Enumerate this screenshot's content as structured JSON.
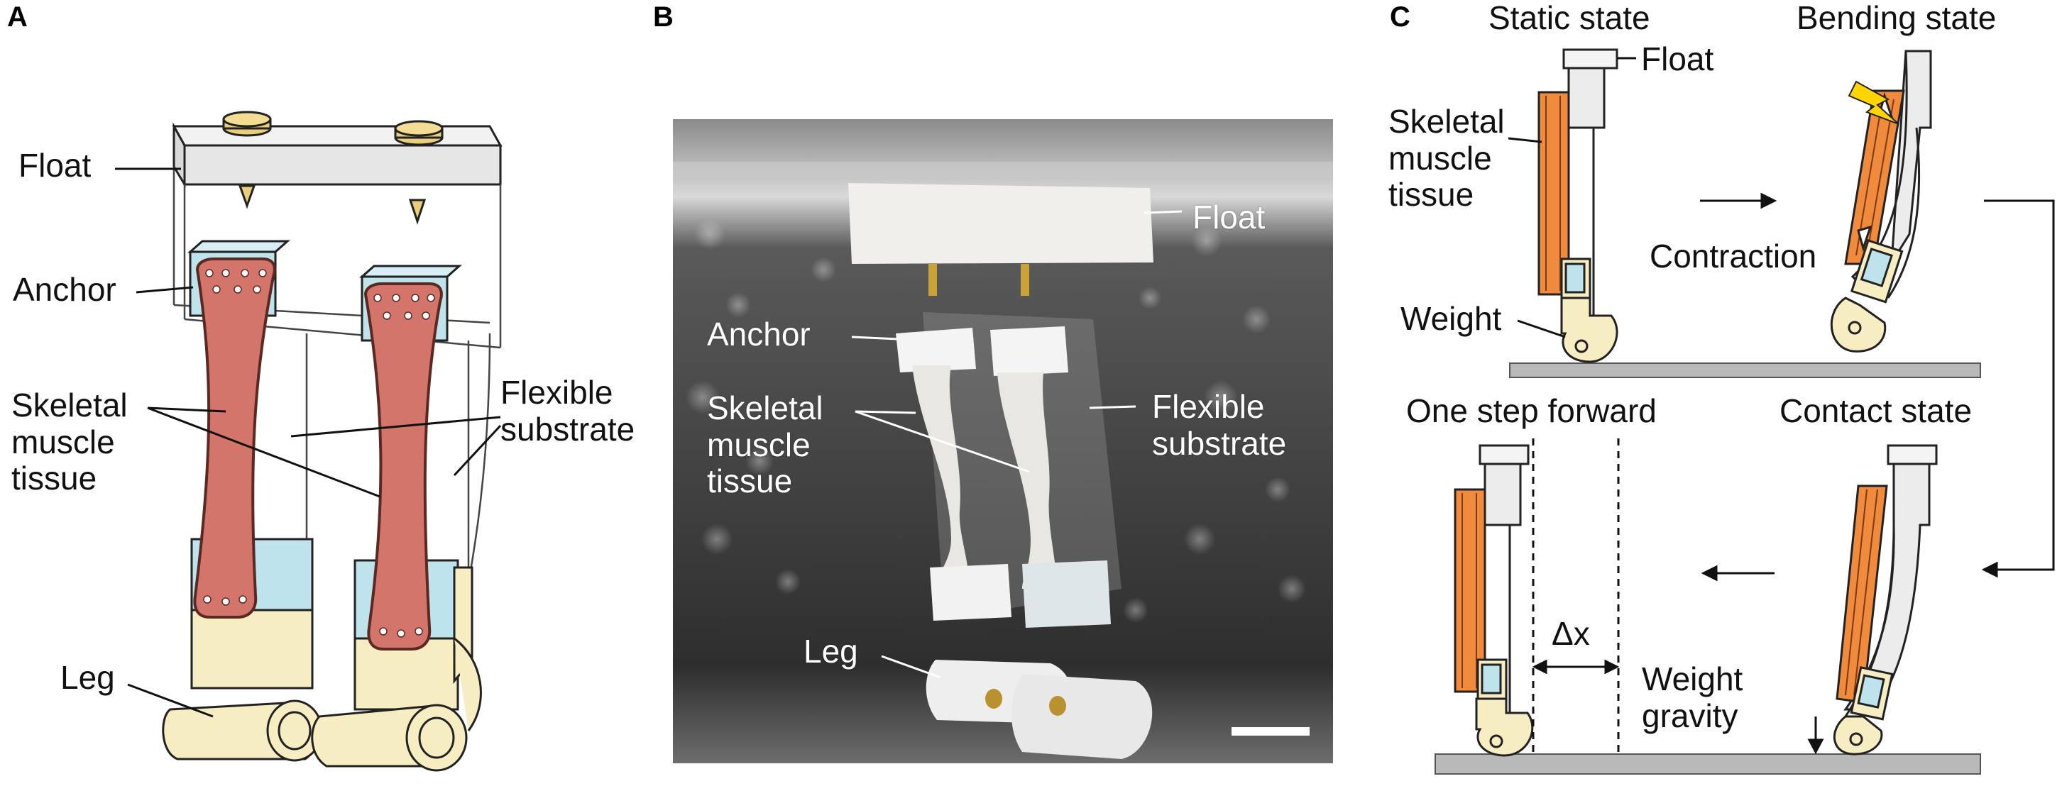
{
  "panels": {
    "a": {
      "letter": "A",
      "labels": {
        "float": "Float",
        "anchor": "Anchor",
        "skeletal_muscle_tissue": [
          "Skeletal",
          "muscle",
          "tissue"
        ],
        "flexible_substrate": [
          "Flexible",
          "substrate"
        ],
        "leg": "Leg"
      }
    },
    "b": {
      "letter": "B",
      "labels": {
        "float": "Float",
        "anchor": "Anchor",
        "skeletal_muscle_tissue": [
          "Skeletal",
          "muscle",
          "tissue"
        ],
        "flexible_substrate": [
          "Flexible",
          "substrate"
        ],
        "leg": "Leg"
      }
    },
    "c": {
      "letter": "C",
      "states": {
        "static": "Static state",
        "bending": "Bending state",
        "one_step_forward": "One step forward",
        "contact": "Contact state"
      },
      "labels": {
        "float": "Float",
        "skeletal_muscle_tissue": [
          "Skeletal",
          "muscle",
          "tissue"
        ],
        "contraction": "Contraction",
        "weight": "Weight",
        "delta_x": "Δx",
        "weight_gravity": [
          "Weight",
          "gravity"
        ]
      }
    }
  },
  "colors": {
    "muscle_red": "#d4756b",
    "muscle_outline": "#5a2a22",
    "anchor_blue": "#bfe3ec",
    "leg_yellow": "#f7edc2",
    "float_gray": "#e8e8e8",
    "orange_tissue": "#f08a3c",
    "lightning": "#ffd400",
    "ground_gray": "#b9b9b9"
  }
}
